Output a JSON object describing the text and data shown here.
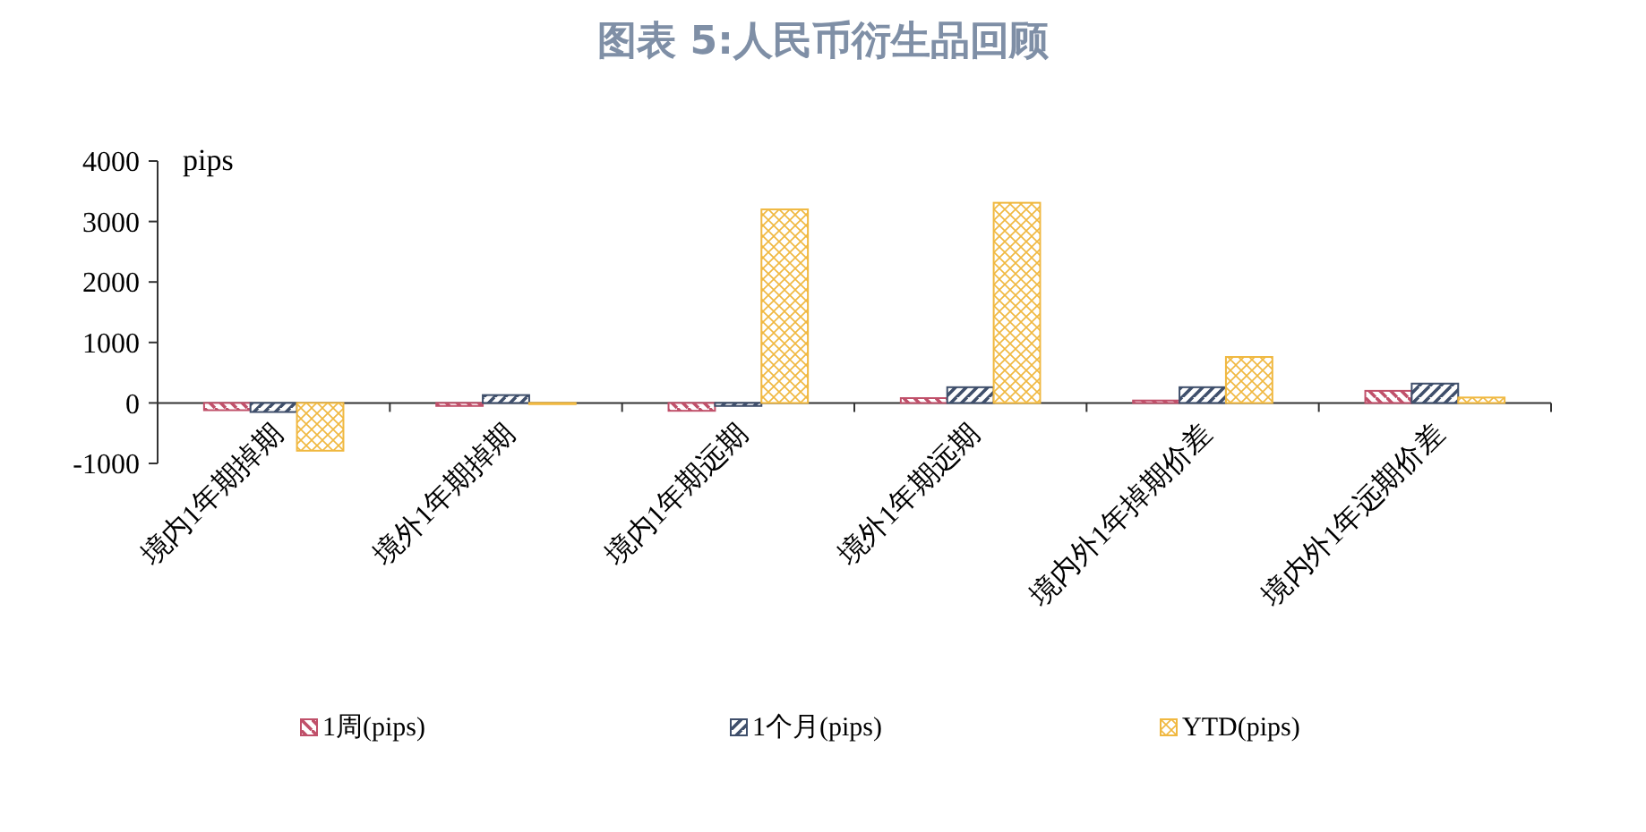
{
  "chart_data": {
    "type": "bar",
    "title": "图表 5:人民币衍生品回顾",
    "ylabel": "pips",
    "categories": [
      "境内1年期掉期",
      "境外1年期掉期",
      "境内1年期远期",
      "境外1年期远期",
      "境内外1年掉期价差",
      "境内外1年远期价差"
    ],
    "series": [
      {
        "name": "1周(pips)",
        "color": "#c0506a",
        "values": [
          -120,
          -50,
          -130,
          80,
          40,
          200
        ]
      },
      {
        "name": "1个月(pips)",
        "color": "#3f4f6b",
        "values": [
          -150,
          130,
          -50,
          260,
          260,
          320
        ]
      },
      {
        "name": "YTD(pips)",
        "color": "#f0b840",
        "values": [
          -790,
          -20,
          3200,
          3310,
          760,
          90
        ]
      }
    ],
    "ylim": [
      -1000,
      4000
    ],
    "yticks": [
      -1000,
      0,
      1000,
      2000,
      3000,
      4000
    ],
    "grid": false,
    "legend": "bottom"
  }
}
